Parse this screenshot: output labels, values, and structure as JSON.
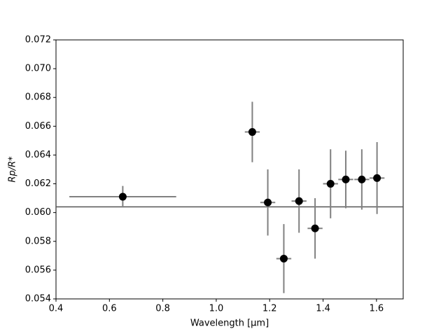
{
  "chart_data": {
    "type": "scatter",
    "xlabel": "Wavelength [μm]",
    "ylabel": "Rp/R*",
    "x": [
      0.65,
      1.135,
      1.193,
      1.253,
      1.31,
      1.37,
      1.428,
      1.485,
      1.545,
      1.602
    ],
    "values": [
      0.0611,
      0.0656,
      0.0607,
      0.0568,
      0.0608,
      0.0589,
      0.062,
      0.0623,
      0.0623,
      0.0624
    ],
    "xerr": [
      0.2,
      0.028,
      0.028,
      0.028,
      0.028,
      0.028,
      0.028,
      0.028,
      0.028,
      0.028
    ],
    "yerr": [
      0.00075,
      0.0021,
      0.0023,
      0.0024,
      0.0022,
      0.0021,
      0.0024,
      0.002,
      0.0021,
      0.0025
    ],
    "color": "#000000",
    "errcolor": "#808080",
    "model": {
      "x": [
        0.4,
        1.7
      ],
      "values": [
        0.0604,
        0.0604
      ],
      "color": "#555555"
    },
    "xlim": [
      0.4,
      1.7
    ],
    "ylim": [
      0.054,
      0.072
    ],
    "xticks": [
      0.4,
      0.6,
      0.8,
      {
        "value": 1,
        "label": "1.0"
      },
      1.2,
      1.4,
      1.6
    ],
    "yticks": [
      0.054,
      0.056,
      0.058,
      {
        "value": 0.06,
        "label": "0.060"
      },
      0.062,
      0.064,
      0.066,
      0.068,
      {
        "value": 0.07,
        "label": "0.070"
      },
      0.072
    ]
  }
}
